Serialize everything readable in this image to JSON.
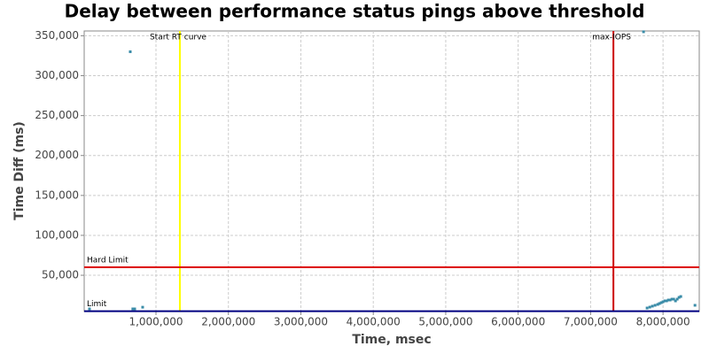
{
  "chart_data": {
    "type": "scatter",
    "title": "Delay between performance status pings above threshold",
    "x_label": "Time, msec",
    "y_label": "Time Diff (ms)",
    "xlim": [
      9000,
      8500000
    ],
    "ylim": [
      4600,
      356000
    ],
    "xticks": [
      {
        "value": 1000000,
        "label": "1,000,000"
      },
      {
        "value": 2000000,
        "label": "2,000,000"
      },
      {
        "value": 3000000,
        "label": "3,000,000"
      },
      {
        "value": 4000000,
        "label": "4,000,000"
      },
      {
        "value": 5000000,
        "label": "5,000,000"
      },
      {
        "value": 6000000,
        "label": "6,000,000"
      },
      {
        "value": 7000000,
        "label": "7,000,000"
      },
      {
        "value": 8000000,
        "label": "8,000,000"
      }
    ],
    "yticks": [
      {
        "value": 50000,
        "label": "50,000"
      },
      {
        "value": 100000,
        "label": "100,000"
      },
      {
        "value": 150000,
        "label": "150,000"
      },
      {
        "value": 200000,
        "label": "200,000"
      },
      {
        "value": 250000,
        "label": "250,000"
      },
      {
        "value": 300000,
        "label": "300,000"
      },
      {
        "value": 350000,
        "label": "350,000"
      }
    ],
    "grid": true,
    "color": "#3a8ca8",
    "x": [
      82000,
      645000,
      680000,
      706000,
      816000,
      7731000,
      7780000,
      7817000,
      7853000,
      7890000,
      7927000,
      7951000,
      7976000,
      8000000,
      8025000,
      8049000,
      8074000,
      8098000,
      8123000,
      8147000,
      8172000,
      8196000,
      8221000,
      8245000,
      8441000
    ],
    "values": [
      7900,
      330000,
      7900,
      7900,
      10000,
      355000,
      9000,
      10100,
      11300,
      12400,
      13500,
      14600,
      15700,
      16800,
      17900,
      17900,
      19000,
      19000,
      20100,
      20100,
      17900,
      20100,
      22300,
      23400,
      12400
    ],
    "reference_lines": [
      {
        "label": "Start RT curve",
        "axis": "x",
        "value": 1330000,
        "color": "#ffff00"
      },
      {
        "label": "max-IOPS",
        "axis": "x",
        "value": 7315000,
        "color": "#cc0000"
      },
      {
        "label": "Hard Limit",
        "axis": "y",
        "value": 60000,
        "color": "#dd0000"
      },
      {
        "label": "Limit",
        "axis": "y",
        "value": 5000,
        "color": "#000080"
      }
    ]
  }
}
